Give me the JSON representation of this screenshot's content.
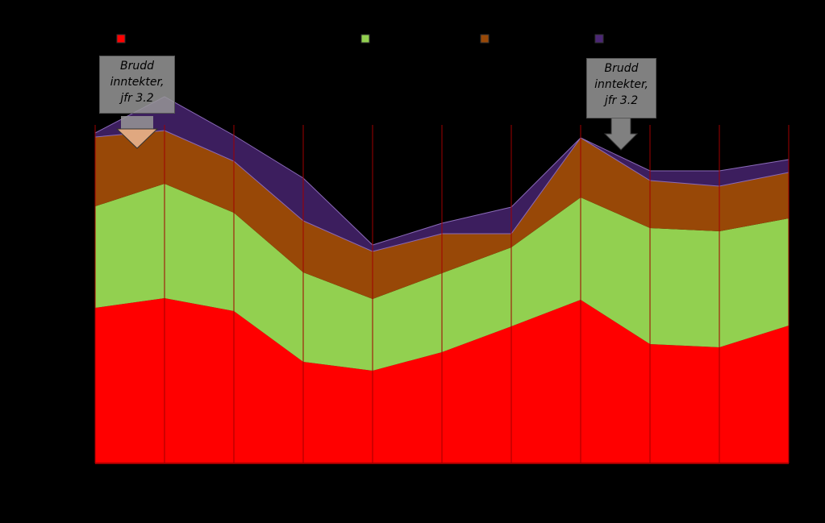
{
  "chart_data": {
    "type": "stacked-area",
    "categories": [
      null,
      null,
      null,
      null,
      null,
      null,
      null,
      null,
      null,
      null,
      null
    ],
    "ylim": [
      0,
      100
    ],
    "series": [
      {
        "color": "#ff0000",
        "values": [
          38.6,
          41,
          37.8,
          25.2,
          23,
          27.6,
          34,
          40.6,
          29.6,
          28.8,
          34.2
        ]
      },
      {
        "color": "#92d050",
        "values": [
          25.2,
          28.4,
          24.4,
          22.2,
          17.8,
          19.6,
          19.6,
          25.4,
          28.8,
          28.8,
          26.6
        ]
      },
      {
        "color": "#984807",
        "values": [
          17.2,
          13.2,
          12.8,
          12.8,
          11.8,
          9.8,
          3.4,
          14.8,
          11.8,
          11.2,
          11.4
        ]
      },
      {
        "color": "#4b2675",
        "values": [
          1,
          8.4,
          6.4,
          10.6,
          1.6,
          2.6,
          6.6,
          0,
          2.4,
          3.8,
          3.2
        ]
      }
    ],
    "annotations": [
      "Brudd inntekter, jfr 3.2",
      "Brudd inntekter, jfr 3.2"
    ]
  }
}
